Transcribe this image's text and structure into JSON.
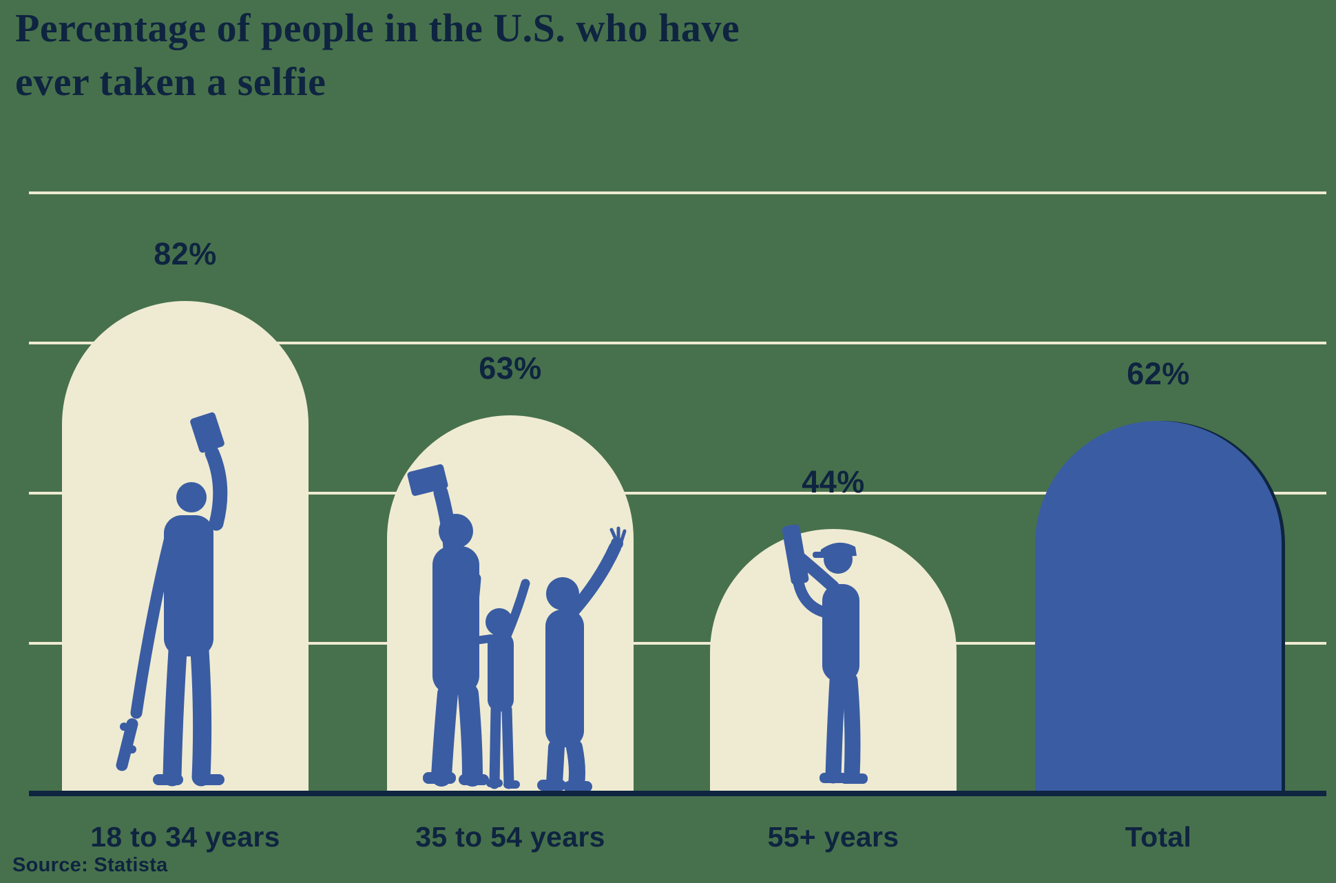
{
  "page": {
    "title_lines": [
      "Percentage of people in the U.S. who have",
      "ever taken a selfie"
    ],
    "source": "Source: Statista"
  },
  "colors": {
    "background": "#47714C",
    "bar_fill": "#EFEBD2",
    "bar_highlight": "#3A5CA3",
    "silhouette": "#3A5CA3",
    "text": "#0E2440",
    "gridline": "#EFEBD2",
    "axis": "#0E2440"
  },
  "chart_data": {
    "type": "bar",
    "title": "Percentage of people in the U.S. who have ever taken a selfie",
    "source": "Source: Statista",
    "categories": [
      "18 to 34 years",
      "35 to 54 years",
      "55+ years",
      "Total"
    ],
    "values": [
      82,
      63,
      44,
      62
    ],
    "display_values": [
      "82%",
      "63%",
      "44%",
      "62%"
    ],
    "xlabel": "",
    "ylabel": "",
    "ylim": [
      0,
      100
    ],
    "gridlines": [
      0,
      25,
      50,
      75,
      100
    ],
    "grid": "on",
    "legend": "none",
    "bar_shape": "arch-top (semicircle)",
    "highlight_category": "Total",
    "silhouettes": [
      "person-with-skateboard-taking-selfie",
      "family-of-three-taking-selfie",
      "older-man-in-flat-cap-taking-selfie",
      "none"
    ]
  }
}
